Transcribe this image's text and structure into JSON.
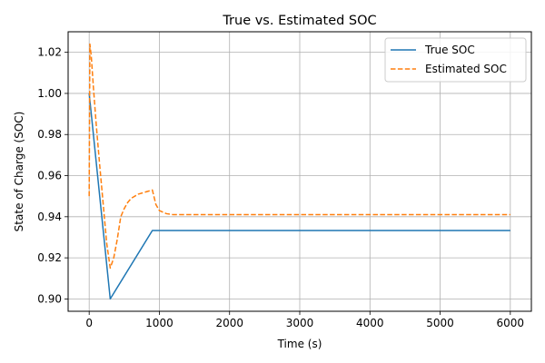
{
  "chart_data": {
    "type": "line",
    "title": "True vs. Estimated SOC",
    "xlabel": "Time (s)",
    "ylabel": "State of Charge (SOC)",
    "xlim": [
      -300,
      6300
    ],
    "ylim": [
      0.894,
      1.03
    ],
    "xticks": [
      0,
      1000,
      2000,
      3000,
      4000,
      5000,
      6000
    ],
    "yticks": [
      0.9,
      0.92,
      0.94,
      0.96,
      0.98,
      1.0,
      1.02
    ],
    "grid": true,
    "legend_position": "top-right",
    "series": [
      {
        "name": "True SOC",
        "color": "#1f77b4",
        "dash": "solid",
        "x": [
          0,
          300,
          900,
          6000
        ],
        "y": [
          1.0,
          0.9,
          0.9333,
          0.9333
        ]
      },
      {
        "name": "Estimated SOC",
        "color": "#ff7f0e",
        "dash": "dashed",
        "x": [
          0,
          10,
          30,
          60,
          100,
          150,
          200,
          250,
          300,
          350,
          400,
          450,
          500,
          550,
          600,
          700,
          800,
          900,
          950,
          1000,
          1100,
          1200,
          1400,
          2000,
          3000,
          4000,
          5000,
          6000
        ],
        "y": [
          0.95,
          1.024,
          1.018,
          1.003,
          0.985,
          0.965,
          0.946,
          0.927,
          0.915,
          0.92,
          0.929,
          0.94,
          0.944,
          0.947,
          0.949,
          0.951,
          0.952,
          0.953,
          0.946,
          0.943,
          0.9415,
          0.941,
          0.941,
          0.941,
          0.941,
          0.941,
          0.941,
          0.941
        ]
      }
    ]
  }
}
